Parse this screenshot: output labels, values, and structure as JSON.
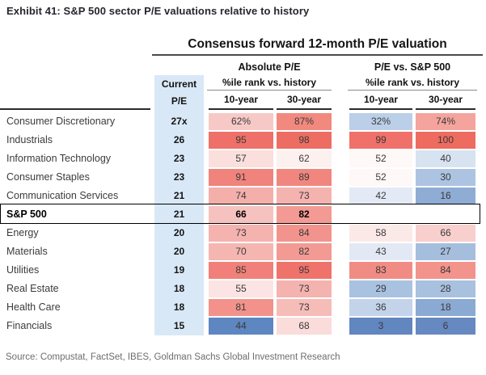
{
  "exhibit_title": "Exhibit 41: S&P 500 sector P/E valuations relative to history",
  "source": "Source: Compustat, FactSet, IBES, Goldman Sachs Global Investment Research",
  "colors": {
    "current_pe_column_blue": "#D9E8F6",
    "scale_max_red": "#EE6B60",
    "scale_min_blue": "#5E86C1",
    "scale_mid_white": "#FEF8F8",
    "title_text": "#26262f",
    "source_text": "#6d6d6d"
  },
  "table": {
    "title": "Consensus forward 12-month P/E valuation",
    "group_absolute": "Absolute P/E",
    "group_relative": "P/E vs. S&P 500",
    "current_header_line1": "Current",
    "current_header_line2": "P/E",
    "pctile_header": "%ile rank vs. history",
    "col_10yr": "10-year",
    "col_30yr": "30-year",
    "rows": [
      {
        "sector": "Consumer Discretionary",
        "pe": "27x",
        "bold": false,
        "abs10": {
          "v": "62%",
          "bg": "#F7C9C6"
        },
        "abs30": {
          "v": "87%",
          "bg": "#F1897F"
        },
        "rel10": {
          "v": "32%",
          "bg": "#BBCFE8"
        },
        "rel30": {
          "v": "74%",
          "bg": "#F4A49D"
        }
      },
      {
        "sector": "Industrials",
        "pe": "26",
        "bold": false,
        "abs10": {
          "v": "95",
          "bg": "#EF7069"
        },
        "abs30": {
          "v": "98",
          "bg": "#EE6D63"
        },
        "rel10": {
          "v": "99",
          "bg": "#EF716A"
        },
        "rel30": {
          "v": "100",
          "bg": "#EE6B60"
        }
      },
      {
        "sector": "Information Technology",
        "pe": "23",
        "bold": false,
        "abs10": {
          "v": "57",
          "bg": "#FADFDD"
        },
        "abs30": {
          "v": "62",
          "bg": "#FDF1F0"
        },
        "rel10": {
          "v": "52",
          "bg": "#FEF8F8"
        },
        "rel30": {
          "v": "40",
          "bg": "#D8E3F1"
        }
      },
      {
        "sector": "Consumer Staples",
        "pe": "23",
        "bold": false,
        "abs10": {
          "v": "91",
          "bg": "#F0837B"
        },
        "abs30": {
          "v": "89",
          "bg": "#F1867E"
        },
        "rel10": {
          "v": "52",
          "bg": "#FEF8F8"
        },
        "rel30": {
          "v": "30",
          "bg": "#ACC4E1"
        }
      },
      {
        "sector": "Communication Services",
        "pe": "21",
        "bold": false,
        "abs10": {
          "v": "74",
          "bg": "#F5AFAB"
        },
        "abs30": {
          "v": "73",
          "bg": "#F5B3AF"
        },
        "rel10": {
          "v": "42",
          "bg": "#E3EAF5"
        },
        "rel30": {
          "v": "16",
          "bg": "#8FACD5"
        }
      },
      {
        "sector": "S&P 500",
        "pe": "21",
        "bold": true,
        "abs10": {
          "v": "66",
          "bg": "#F6C2BF"
        },
        "abs30": {
          "v": "82",
          "bg": "#F29A93"
        },
        "rel10": {
          "v": "",
          "bg": "#FFFFFF"
        },
        "rel30": {
          "v": "",
          "bg": "#FFFFFF"
        }
      },
      {
        "sector": "Energy",
        "pe": "20",
        "bold": false,
        "abs10": {
          "v": "73",
          "bg": "#F5B3AF"
        },
        "abs30": {
          "v": "84",
          "bg": "#F2948D"
        },
        "rel10": {
          "v": "58",
          "bg": "#FBE9E8"
        },
        "rel30": {
          "v": "66",
          "bg": "#F8CFCC"
        }
      },
      {
        "sector": "Materials",
        "pe": "20",
        "bold": false,
        "abs10": {
          "v": "70",
          "bg": "#F5B6B2"
        },
        "abs30": {
          "v": "82",
          "bg": "#F29A93"
        },
        "rel10": {
          "v": "43",
          "bg": "#E2E9F4"
        },
        "rel30": {
          "v": "27",
          "bg": "#A5BEDE"
        }
      },
      {
        "sector": "Utilities",
        "pe": "19",
        "bold": false,
        "abs10": {
          "v": "85",
          "bg": "#F08079"
        },
        "abs30": {
          "v": "95",
          "bg": "#EF736B"
        },
        "rel10": {
          "v": "83",
          "bg": "#F18C84"
        },
        "rel30": {
          "v": "84",
          "bg": "#F2938C"
        }
      },
      {
        "sector": "Real Estate",
        "pe": "18",
        "bold": false,
        "abs10": {
          "v": "55",
          "bg": "#FBE4E3"
        },
        "abs30": {
          "v": "73",
          "bg": "#F5B3AF"
        },
        "rel10": {
          "v": "29",
          "bg": "#A9C2E0"
        },
        "rel30": {
          "v": "28",
          "bg": "#A8C1DF"
        }
      },
      {
        "sector": "Health Care",
        "pe": "18",
        "bold": false,
        "abs10": {
          "v": "81",
          "bg": "#F2928B"
        },
        "abs30": {
          "v": "73",
          "bg": "#F6BCB8"
        },
        "rel10": {
          "v": "36",
          "bg": "#C2D3EA"
        },
        "rel30": {
          "v": "18",
          "bg": "#8BAAD3"
        }
      },
      {
        "sector": "Financials",
        "pe": "15",
        "bold": false,
        "abs10": {
          "v": "44",
          "bg": "#5E86C1"
        },
        "abs30": {
          "v": "68",
          "bg": "#FADCDA"
        },
        "rel10": {
          "v": "3",
          "bg": "#6186C0"
        },
        "rel30": {
          "v": "6",
          "bg": "#6689C2"
        }
      }
    ]
  },
  "chart_data": {
    "type": "heatmap",
    "title": "Consensus forward 12-month P/E valuation",
    "row_labels": [
      "Consumer Discretionary",
      "Industrials",
      "Information Technology",
      "Consumer Staples",
      "Communication Services",
      "S&P 500",
      "Energy",
      "Materials",
      "Utilities",
      "Real Estate",
      "Health Care",
      "Financials"
    ],
    "columns": [
      "Current P/E",
      "Absolute P/E %ile rank vs. history 10-year",
      "Absolute P/E %ile rank vs. history 30-year",
      "P/E vs. S&P 500 %ile rank vs. history 10-year",
      "P/E vs. S&P 500 %ile rank vs. history 30-year"
    ],
    "values": [
      [
        27,
        62,
        87,
        32,
        74
      ],
      [
        26,
        95,
        98,
        99,
        100
      ],
      [
        23,
        57,
        62,
        52,
        40
      ],
      [
        23,
        91,
        89,
        52,
        30
      ],
      [
        21,
        74,
        73,
        42,
        16
      ],
      [
        21,
        66,
        82,
        null,
        null
      ],
      [
        20,
        73,
        84,
        58,
        66
      ],
      [
        20,
        70,
        82,
        43,
        27
      ],
      [
        19,
        85,
        95,
        83,
        84
      ],
      [
        18,
        55,
        73,
        29,
        28
      ],
      [
        18,
        81,
        73,
        36,
        18
      ],
      [
        15,
        44,
        68,
        3,
        6
      ]
    ],
    "legend": "Conditional color scale: red = high percentile rank vs. history, blue = low percentile rank; S&P 500 row highlighted with black box",
    "units": {
      "current_pe": "x (multiple)",
      "other_columns": "percentile"
    }
  }
}
